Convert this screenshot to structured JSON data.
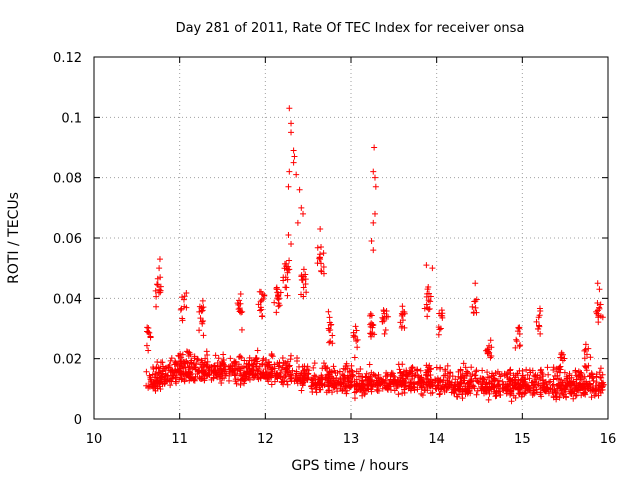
{
  "chart_data": {
    "type": "scatter",
    "title": "Day 281 of 2011, Rate Of TEC Index for receiver onsa",
    "xlabel": "GPS time / hours",
    "ylabel": "ROTI / TECUs",
    "xlim": [
      10,
      16
    ],
    "ylim": [
      0,
      0.12
    ],
    "xticks": [
      "10",
      "11",
      "12",
      "13",
      "14",
      "15",
      "16"
    ],
    "yticks": [
      "0",
      "0.02",
      "0.04",
      "0.06",
      "0.08",
      "0.1",
      "0.12"
    ],
    "grid": true,
    "marker": "+",
    "color": "#ff0000",
    "x_range_of_data": [
      10.6,
      15.95
    ],
    "generated_cloud": {
      "n": 1700,
      "baseline": [
        [
          10.6,
          0.012
        ],
        [
          10.8,
          0.014
        ],
        [
          11.0,
          0.016
        ],
        [
          11.2,
          0.016
        ],
        [
          11.5,
          0.016
        ],
        [
          12.0,
          0.016
        ],
        [
          12.3,
          0.015
        ],
        [
          12.6,
          0.013
        ],
        [
          13.0,
          0.012
        ],
        [
          13.3,
          0.012
        ],
        [
          13.7,
          0.013
        ],
        [
          14.0,
          0.012
        ],
        [
          14.5,
          0.011
        ],
        [
          15.0,
          0.011
        ],
        [
          15.5,
          0.011
        ],
        [
          15.95,
          0.011
        ]
      ],
      "spread": 0.008,
      "min_value": 0.004
    },
    "clusters": [
      {
        "x": 10.65,
        "y": 0.031,
        "n": 10
      },
      {
        "x": 10.75,
        "y": 0.047,
        "n": 12
      },
      {
        "x": 11.05,
        "y": 0.042,
        "n": 10
      },
      {
        "x": 11.25,
        "y": 0.038,
        "n": 14
      },
      {
        "x": 11.7,
        "y": 0.04,
        "n": 12
      },
      {
        "x": 11.95,
        "y": 0.042,
        "n": 14
      },
      {
        "x": 12.15,
        "y": 0.044,
        "n": 16
      },
      {
        "x": 12.25,
        "y": 0.052,
        "n": 18
      },
      {
        "x": 12.45,
        "y": 0.049,
        "n": 14
      },
      {
        "x": 12.65,
        "y": 0.056,
        "n": 12
      },
      {
        "x": 12.75,
        "y": 0.035,
        "n": 12
      },
      {
        "x": 13.05,
        "y": 0.03,
        "n": 10
      },
      {
        "x": 13.25,
        "y": 0.034,
        "n": 16
      },
      {
        "x": 13.4,
        "y": 0.035,
        "n": 14
      },
      {
        "x": 13.6,
        "y": 0.036,
        "n": 12
      },
      {
        "x": 13.9,
        "y": 0.043,
        "n": 14
      },
      {
        "x": 14.05,
        "y": 0.036,
        "n": 10
      },
      {
        "x": 14.45,
        "y": 0.039,
        "n": 8
      },
      {
        "x": 14.6,
        "y": 0.025,
        "n": 12
      },
      {
        "x": 14.95,
        "y": 0.03,
        "n": 10
      },
      {
        "x": 15.2,
        "y": 0.036,
        "n": 10
      },
      {
        "x": 15.45,
        "y": 0.022,
        "n": 10
      },
      {
        "x": 15.75,
        "y": 0.024,
        "n": 12
      },
      {
        "x": 15.9,
        "y": 0.038,
        "n": 12
      }
    ],
    "points": [
      {
        "x": 12.28,
        "y": 0.103
      },
      {
        "x": 12.3,
        "y": 0.098
      },
      {
        "x": 12.3,
        "y": 0.095
      },
      {
        "x": 12.33,
        "y": 0.089
      },
      {
        "x": 12.34,
        "y": 0.087
      },
      {
        "x": 12.33,
        "y": 0.085
      },
      {
        "x": 12.36,
        "y": 0.081
      },
      {
        "x": 12.28,
        "y": 0.082
      },
      {
        "x": 12.27,
        "y": 0.077
      },
      {
        "x": 12.4,
        "y": 0.076
      },
      {
        "x": 12.42,
        "y": 0.07
      },
      {
        "x": 12.44,
        "y": 0.068
      },
      {
        "x": 12.38,
        "y": 0.065
      },
      {
        "x": 12.27,
        "y": 0.061
      },
      {
        "x": 12.3,
        "y": 0.058
      },
      {
        "x": 12.64,
        "y": 0.063
      },
      {
        "x": 12.65,
        "y": 0.057
      },
      {
        "x": 12.68,
        "y": 0.055
      },
      {
        "x": 13.27,
        "y": 0.09
      },
      {
        "x": 13.26,
        "y": 0.082
      },
      {
        "x": 13.28,
        "y": 0.08
      },
      {
        "x": 13.29,
        "y": 0.077
      },
      {
        "x": 13.28,
        "y": 0.068
      },
      {
        "x": 13.26,
        "y": 0.065
      },
      {
        "x": 13.24,
        "y": 0.059
      },
      {
        "x": 13.26,
        "y": 0.056
      },
      {
        "x": 10.77,
        "y": 0.053
      },
      {
        "x": 10.76,
        "y": 0.05
      },
      {
        "x": 13.88,
        "y": 0.051
      },
      {
        "x": 13.95,
        "y": 0.05
      },
      {
        "x": 14.45,
        "y": 0.045
      },
      {
        "x": 15.88,
        "y": 0.045
      },
      {
        "x": 15.9,
        "y": 0.043
      }
    ]
  }
}
